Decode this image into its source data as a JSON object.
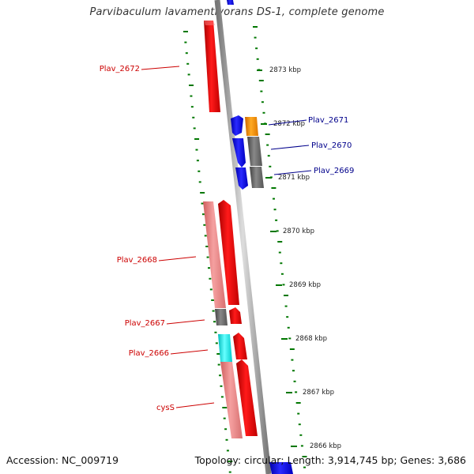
{
  "title": "Parvibaculum lavamentivorans DS-1, complete genome",
  "footer": {
    "accession": "Accession: NC_009719",
    "topology": "Topology: circular; Length: 3,914,745 bp; Genes: 3,686"
  },
  "colors": {
    "forward_gene": "#ff0000",
    "reverse_gene": "#0000ff",
    "forward_label": "#cc0000",
    "reverse_label": "#00008b",
    "backbone": "#999999",
    "tick": "#007700",
    "pseudo_cds": "#f08080",
    "cyan_feature": "#00ffff",
    "grey_feature": "#666666",
    "orange_feature": "#ff9900"
  },
  "ticks": [
    {
      "label": "2873 kbp"
    },
    {
      "label": "2872 kbp"
    },
    {
      "label": "2871 kbp"
    },
    {
      "label": "2870 kbp"
    },
    {
      "label": "2869 kbp"
    },
    {
      "label": "2868 kbp"
    },
    {
      "label": "2867 kbp"
    },
    {
      "label": "2866 kbp"
    }
  ],
  "gene_labels": [
    {
      "name": "Plav_2672",
      "strand": "forward"
    },
    {
      "name": "Plav_2671",
      "strand": "reverse"
    },
    {
      "name": "Plav_2670",
      "strand": "reverse"
    },
    {
      "name": "Plav_2669",
      "strand": "reverse"
    },
    {
      "name": "Plav_2668",
      "strand": "forward"
    },
    {
      "name": "Plav_2667",
      "strand": "forward"
    },
    {
      "name": "Plav_2666",
      "strand": "forward"
    },
    {
      "name": "cysS",
      "strand": "forward"
    }
  ]
}
